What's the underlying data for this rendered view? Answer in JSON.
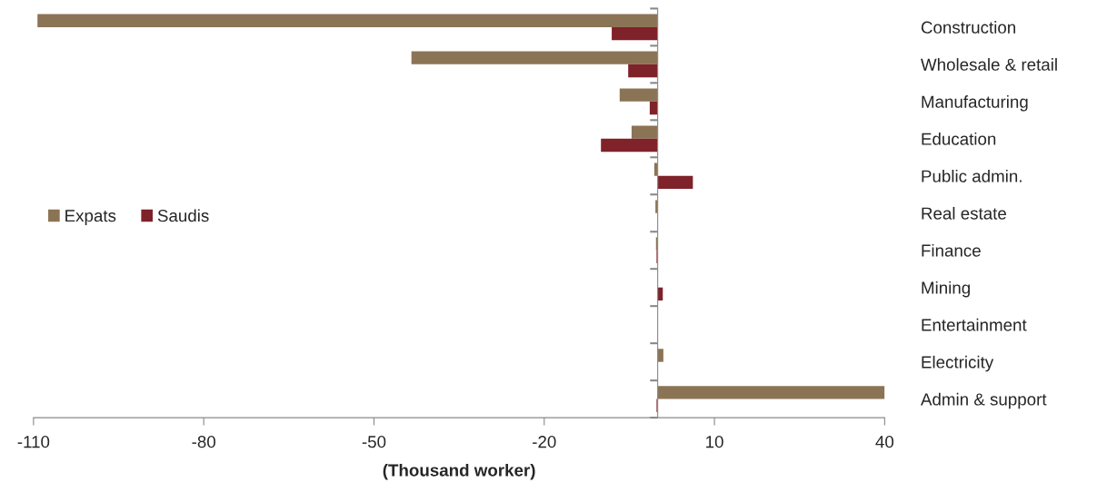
{
  "chart_data": {
    "type": "bar",
    "orientation": "horizontal",
    "xlabel": "(Thousand worker)",
    "categories": [
      "Construction",
      "Wholesale & retail",
      "Manufacturing",
      "Education",
      "Public admin.",
      "Real estate",
      "Finance",
      "Mining",
      "Entertainment",
      "Electricity",
      "Admin & support"
    ],
    "series": [
      {
        "name": "Expats",
        "color": "#8b7455",
        "values": [
          -109.3,
          -43.4,
          -6.7,
          -4.6,
          -0.6,
          -0.4,
          -0.3,
          0,
          0,
          1.0,
          40
        ]
      },
      {
        "name": "Saudis",
        "color": "#7f2229",
        "values": [
          -8.1,
          -5.2,
          -1.4,
          -10.0,
          6.2,
          0,
          -0.2,
          0.9,
          0,
          0,
          -0.2
        ]
      }
    ],
    "xlim": [
      -110,
      40
    ],
    "xticks": [
      -110,
      -80,
      -50,
      -20,
      10,
      40
    ],
    "grid": false,
    "legend": "left"
  }
}
